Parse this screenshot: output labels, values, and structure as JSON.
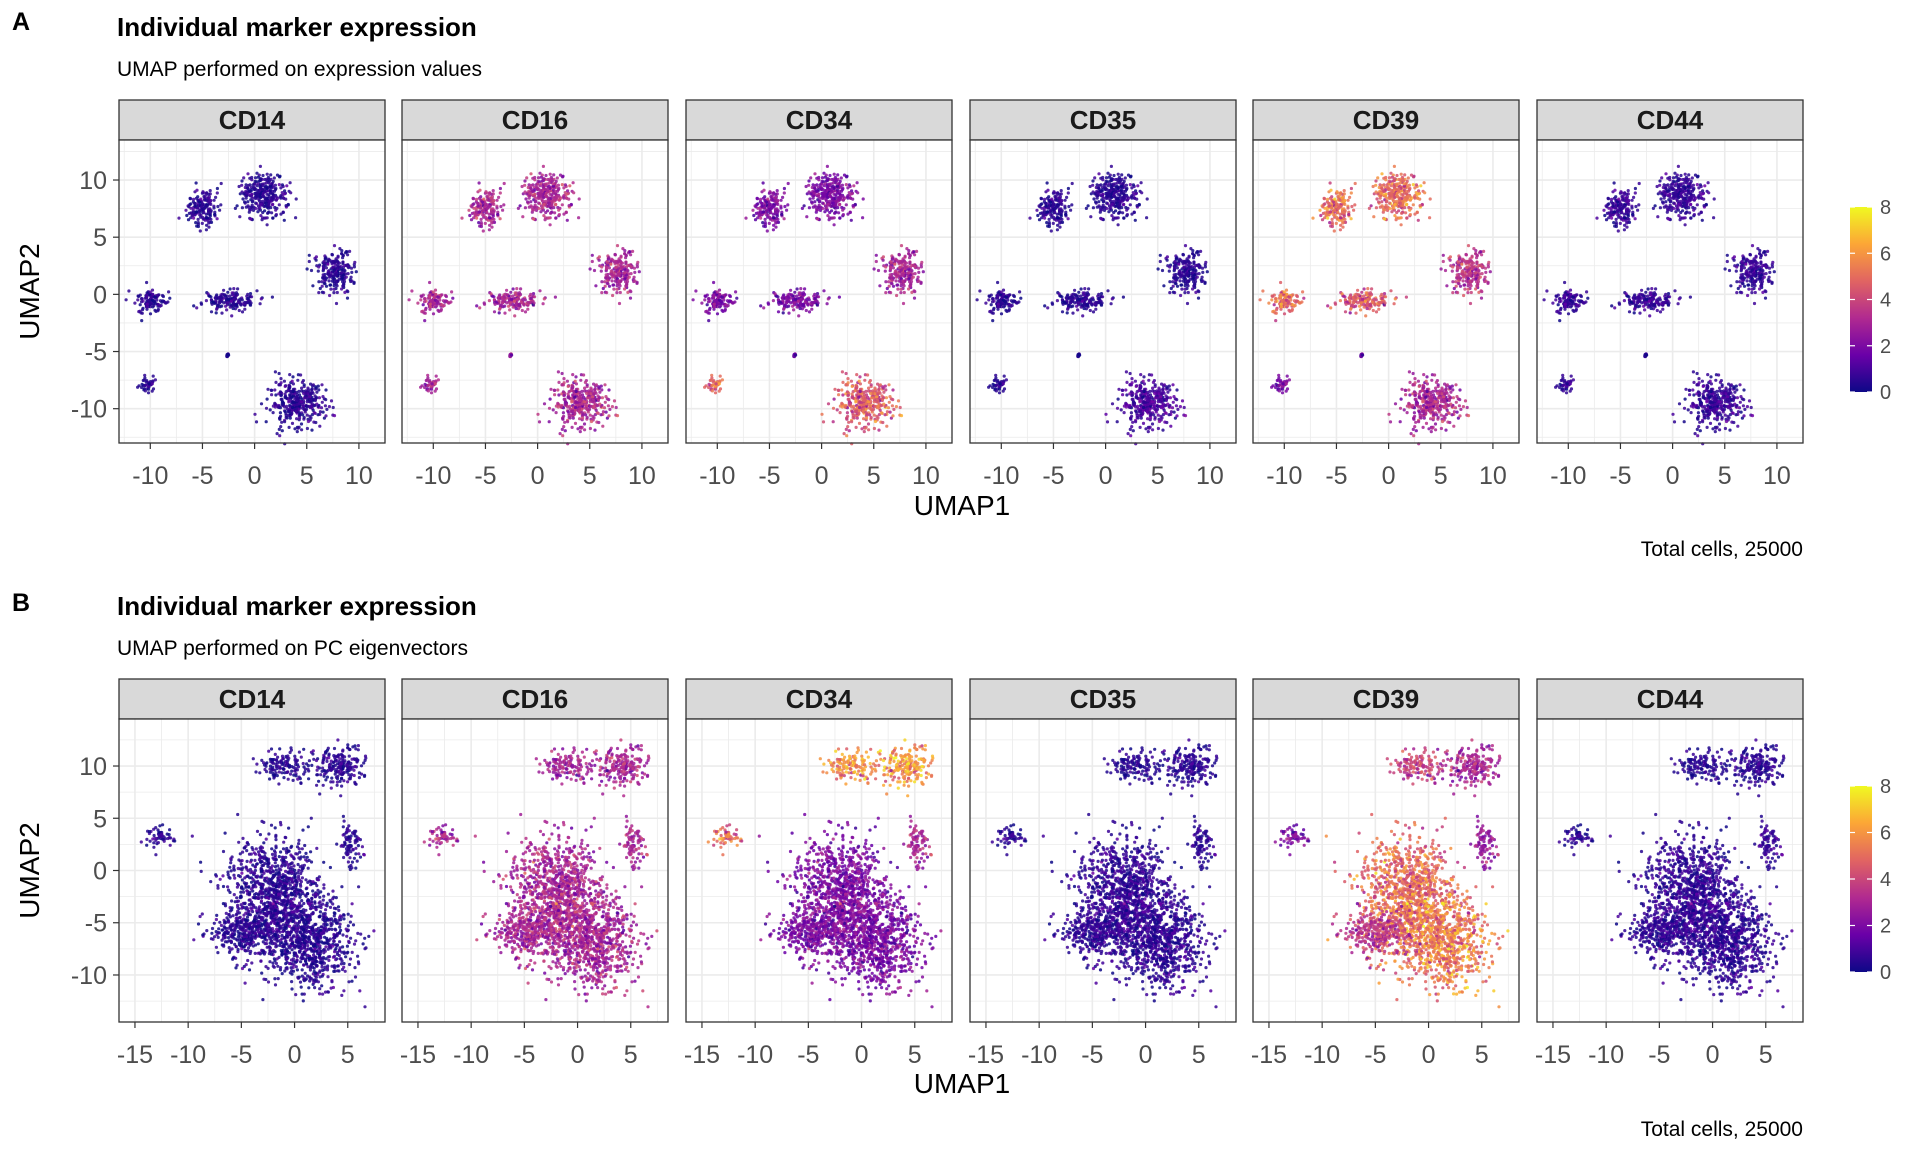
{
  "chart_data": [
    {
      "panel_label": "A",
      "type": "scatter",
      "title": "Individual marker expression",
      "subtitle": "UMAP performed on expression values",
      "xlabel": "UMAP1",
      "ylabel": "UMAP2",
      "caption": "Total cells, 25000",
      "facets": [
        "CD14",
        "CD16",
        "CD34",
        "CD35",
        "CD39",
        "CD44"
      ],
      "xlim": [
        -13,
        12.5
      ],
      "ylim": [
        -13,
        13.5
      ],
      "xticks": [
        -10,
        -5,
        0,
        5,
        10
      ],
      "xtick_labels": [
        "-10",
        "-5",
        "0",
        "5",
        "10"
      ],
      "yticks": [
        -10,
        -5,
        0,
        5,
        10
      ],
      "ytick_labels": [
        "-10",
        "-5",
        "0",
        "5",
        "10"
      ],
      "grid": true,
      "legend": {
        "position": "right",
        "type": "colorbar",
        "range": [
          0,
          8
        ],
        "ticks": [
          "0",
          "2",
          "4",
          "6",
          "8"
        ],
        "colors": [
          "#0d0887",
          "#6a00a8",
          "#b12a90",
          "#e16462",
          "#fca636",
          "#f0f921"
        ]
      },
      "clusters": [
        {
          "center": [
            -5,
            7.5
          ],
          "rx": 1.5,
          "ry": 1.6
        },
        {
          "center": [
            0.8,
            8.6
          ],
          "rx": 2.3,
          "ry": 1.9
        },
        {
          "center": [
            -10,
            -0.6
          ],
          "rx": 1.6,
          "ry": 1.0
        },
        {
          "center": [
            -2.4,
            -0.6
          ],
          "rx": 2.6,
          "ry": 0.9
        },
        {
          "center": [
            7.6,
            1.9
          ],
          "rx": 1.8,
          "ry": 1.8
        },
        {
          "center": [
            -10.3,
            -7.8
          ],
          "rx": 0.7,
          "ry": 0.8
        },
        {
          "center": [
            4,
            -9.5
          ],
          "rx": 2.7,
          "ry": 1.9
        },
        {
          "center": [
            -2.6,
            -5.3
          ],
          "rx": 0.15,
          "ry": 0.15
        }
      ],
      "mean_expression": {
        "CD14": [
          0.5,
          0.5,
          0.5,
          0.5,
          0.5,
          0.5,
          0.5,
          0.5
        ],
        "CD16": [
          3,
          3,
          3,
          3,
          3,
          3,
          3,
          3
        ],
        "CD34": [
          2,
          2,
          2,
          2,
          3,
          5,
          4.5,
          2
        ],
        "CD35": [
          0.5,
          0.5,
          0.5,
          0.5,
          0.5,
          0.5,
          1,
          0.5
        ],
        "CD39": [
          5,
          5,
          5,
          4.5,
          3.5,
          2,
          3,
          2
        ],
        "CD44": [
          0.7,
          0.7,
          0.7,
          0.7,
          0.7,
          0.7,
          0.7,
          0.7
        ]
      }
    },
    {
      "panel_label": "B",
      "type": "scatter",
      "title": "Individual marker expression",
      "subtitle": "UMAP performed on PC eigenvectors",
      "xlabel": "UMAP1",
      "ylabel": "UMAP2",
      "caption": "Total cells, 25000",
      "facets": [
        "CD14",
        "CD16",
        "CD34",
        "CD35",
        "CD39",
        "CD44"
      ],
      "xlim": [
        -16.5,
        8.5
      ],
      "ylim": [
        -14.5,
        14.5
      ],
      "xticks": [
        -15,
        -10,
        -5,
        0,
        5
      ],
      "xtick_labels": [
        "-15",
        "-10",
        "-5",
        "0",
        "5"
      ],
      "yticks": [
        -10,
        -5,
        0,
        5,
        10
      ],
      "ytick_labels": [
        "-10",
        "-5",
        "0",
        "5",
        "10"
      ],
      "grid": true,
      "legend": {
        "position": "right",
        "type": "colorbar",
        "range": [
          0,
          8
        ],
        "ticks": [
          "0",
          "2",
          "4",
          "6",
          "8"
        ],
        "colors": [
          "#0d0887",
          "#6a00a8",
          "#b12a90",
          "#e16462",
          "#fca636",
          "#f0f921"
        ]
      },
      "clusters": [
        {
          "center": [
            -1,
            10
          ],
          "rx": 2.2,
          "ry": 1.3
        },
        {
          "center": [
            4,
            10
          ],
          "rx": 2.4,
          "ry": 1.9
        },
        {
          "center": [
            -12.5,
            3.2
          ],
          "rx": 1.3,
          "ry": 0.9
        },
        {
          "center": [
            5.2,
            2.6
          ],
          "rx": 1.0,
          "ry": 1.9
        },
        {
          "center": [
            -2,
            -2.5
          ],
          "rx": 4.5,
          "ry": 5.5
        },
        {
          "center": [
            1.5,
            -7
          ],
          "rx": 4.0,
          "ry": 4.0
        },
        {
          "center": [
            -5,
            -6
          ],
          "rx": 3.0,
          "ry": 2.0
        }
      ],
      "mean_expression": {
        "CD14": [
          0.5,
          0.5,
          0.5,
          0.5,
          0.5,
          0.5,
          0.5
        ],
        "CD16": [
          3,
          3,
          3,
          3,
          3,
          3,
          3
        ],
        "CD34": [
          6,
          6,
          5,
          3,
          2,
          2,
          2
        ],
        "CD35": [
          0.5,
          0.5,
          0.5,
          0.5,
          0.6,
          0.6,
          0.6
        ],
        "CD39": [
          4,
          3,
          2,
          2.5,
          5,
          5.5,
          3.5
        ],
        "CD44": [
          0.5,
          0.5,
          0.5,
          0.7,
          0.6,
          0.6,
          0.6
        ]
      }
    }
  ]
}
